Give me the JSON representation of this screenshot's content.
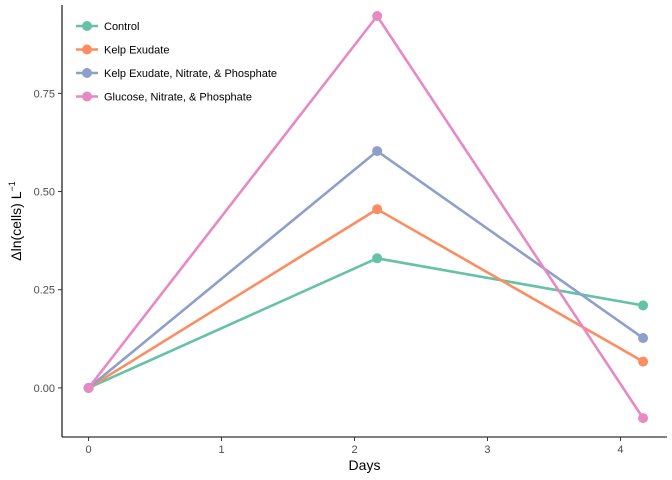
{
  "chart_data": {
    "type": "line",
    "title": "",
    "xlabel": "Days",
    "ylabel": "Δln(cells) L",
    "ylabel_superscript": "−1",
    "x_ticks": [
      0,
      1,
      2,
      3,
      4
    ],
    "x_tick_labels": [
      "0",
      "1",
      "2",
      "3",
      "4"
    ],
    "y_ticks": [
      0,
      0.25,
      0.5,
      0.75
    ],
    "y_tick_labels": [
      "0.00",
      "0.25",
      "0.50",
      "0.75"
    ],
    "xlim": [
      -0.2,
      4.35
    ],
    "ylim": [
      -0.125,
      0.975
    ],
    "grid": false,
    "legend_position": "top-left",
    "series": [
      {
        "name": "Control",
        "color": "#66C2A5",
        "x": [
          0,
          2.17,
          4.17
        ],
        "y": [
          0,
          0.33,
          0.21
        ]
      },
      {
        "name": "Kelp Exudate",
        "color": "#FC8D62",
        "x": [
          0,
          2.17,
          4.17
        ],
        "y": [
          0,
          0.455,
          0.067
        ]
      },
      {
        "name": "Kelp Exudate, Nitrate, & Phosphate",
        "color": "#8DA0CB",
        "x": [
          0,
          2.17,
          4.17
        ],
        "y": [
          0,
          0.603,
          0.127
        ]
      },
      {
        "name": "Glucose, Nitrate, & Phosphate",
        "color": "#E78AC3",
        "x": [
          0,
          2.17,
          4.17
        ],
        "y": [
          0,
          0.947,
          -0.077
        ]
      }
    ]
  }
}
